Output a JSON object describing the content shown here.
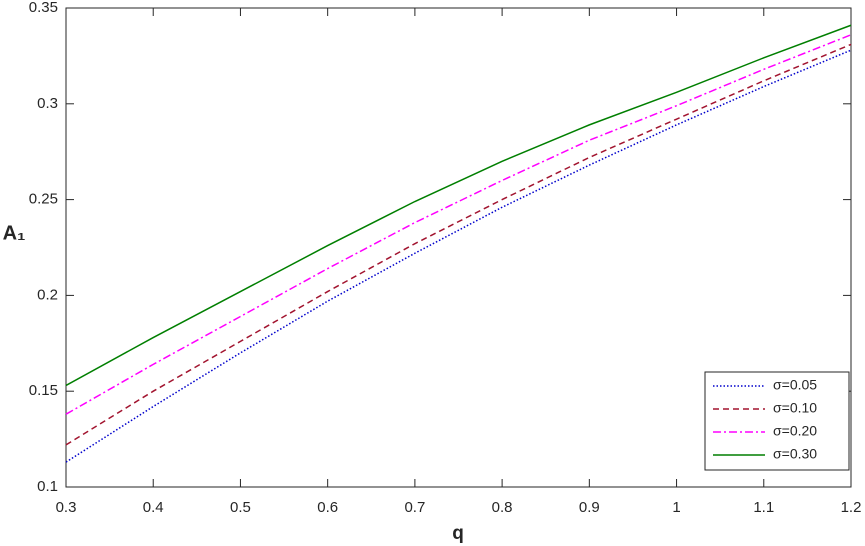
{
  "chart_data": {
    "type": "line",
    "xlabel": "q",
    "ylabel": "A₁",
    "x": [
      0.3,
      0.4,
      0.5,
      0.6,
      0.7,
      0.8,
      0.9,
      1.0,
      1.1,
      1.2
    ],
    "series": [
      {
        "name": "σ=0.05",
        "color": "#0000cc",
        "dash": "1.5 2",
        "values": [
          0.113,
          0.142,
          0.17,
          0.197,
          0.222,
          0.246,
          0.268,
          0.289,
          0.309,
          0.328
        ]
      },
      {
        "name": "σ=0.10",
        "color": "#a2142f",
        "dash": "6 4",
        "values": [
          0.122,
          0.15,
          0.176,
          0.202,
          0.227,
          0.25,
          0.272,
          0.292,
          0.312,
          0.331
        ]
      },
      {
        "name": "σ=0.20",
        "color": "#ff00ff",
        "dash": "8 3 2 3",
        "values": [
          0.138,
          0.164,
          0.189,
          0.214,
          0.238,
          0.26,
          0.281,
          0.299,
          0.318,
          0.336
        ]
      },
      {
        "name": "σ=0.30",
        "color": "#007f00",
        "dash": "none",
        "values": [
          0.153,
          0.178,
          0.202,
          0.226,
          0.249,
          0.27,
          0.289,
          0.306,
          0.324,
          0.341
        ]
      }
    ],
    "xlim": [
      0.3,
      1.2
    ],
    "xticks": [
      0.3,
      0.4,
      0.5,
      0.6,
      0.7,
      0.8,
      0.9,
      1,
      1.1,
      1.2
    ],
    "ylim": [
      0.1,
      0.35
    ],
    "yticks": [
      0.1,
      0.15,
      0.2,
      0.25,
      0.3,
      0.35
    ],
    "grid": false,
    "legend": "lower-right"
  }
}
